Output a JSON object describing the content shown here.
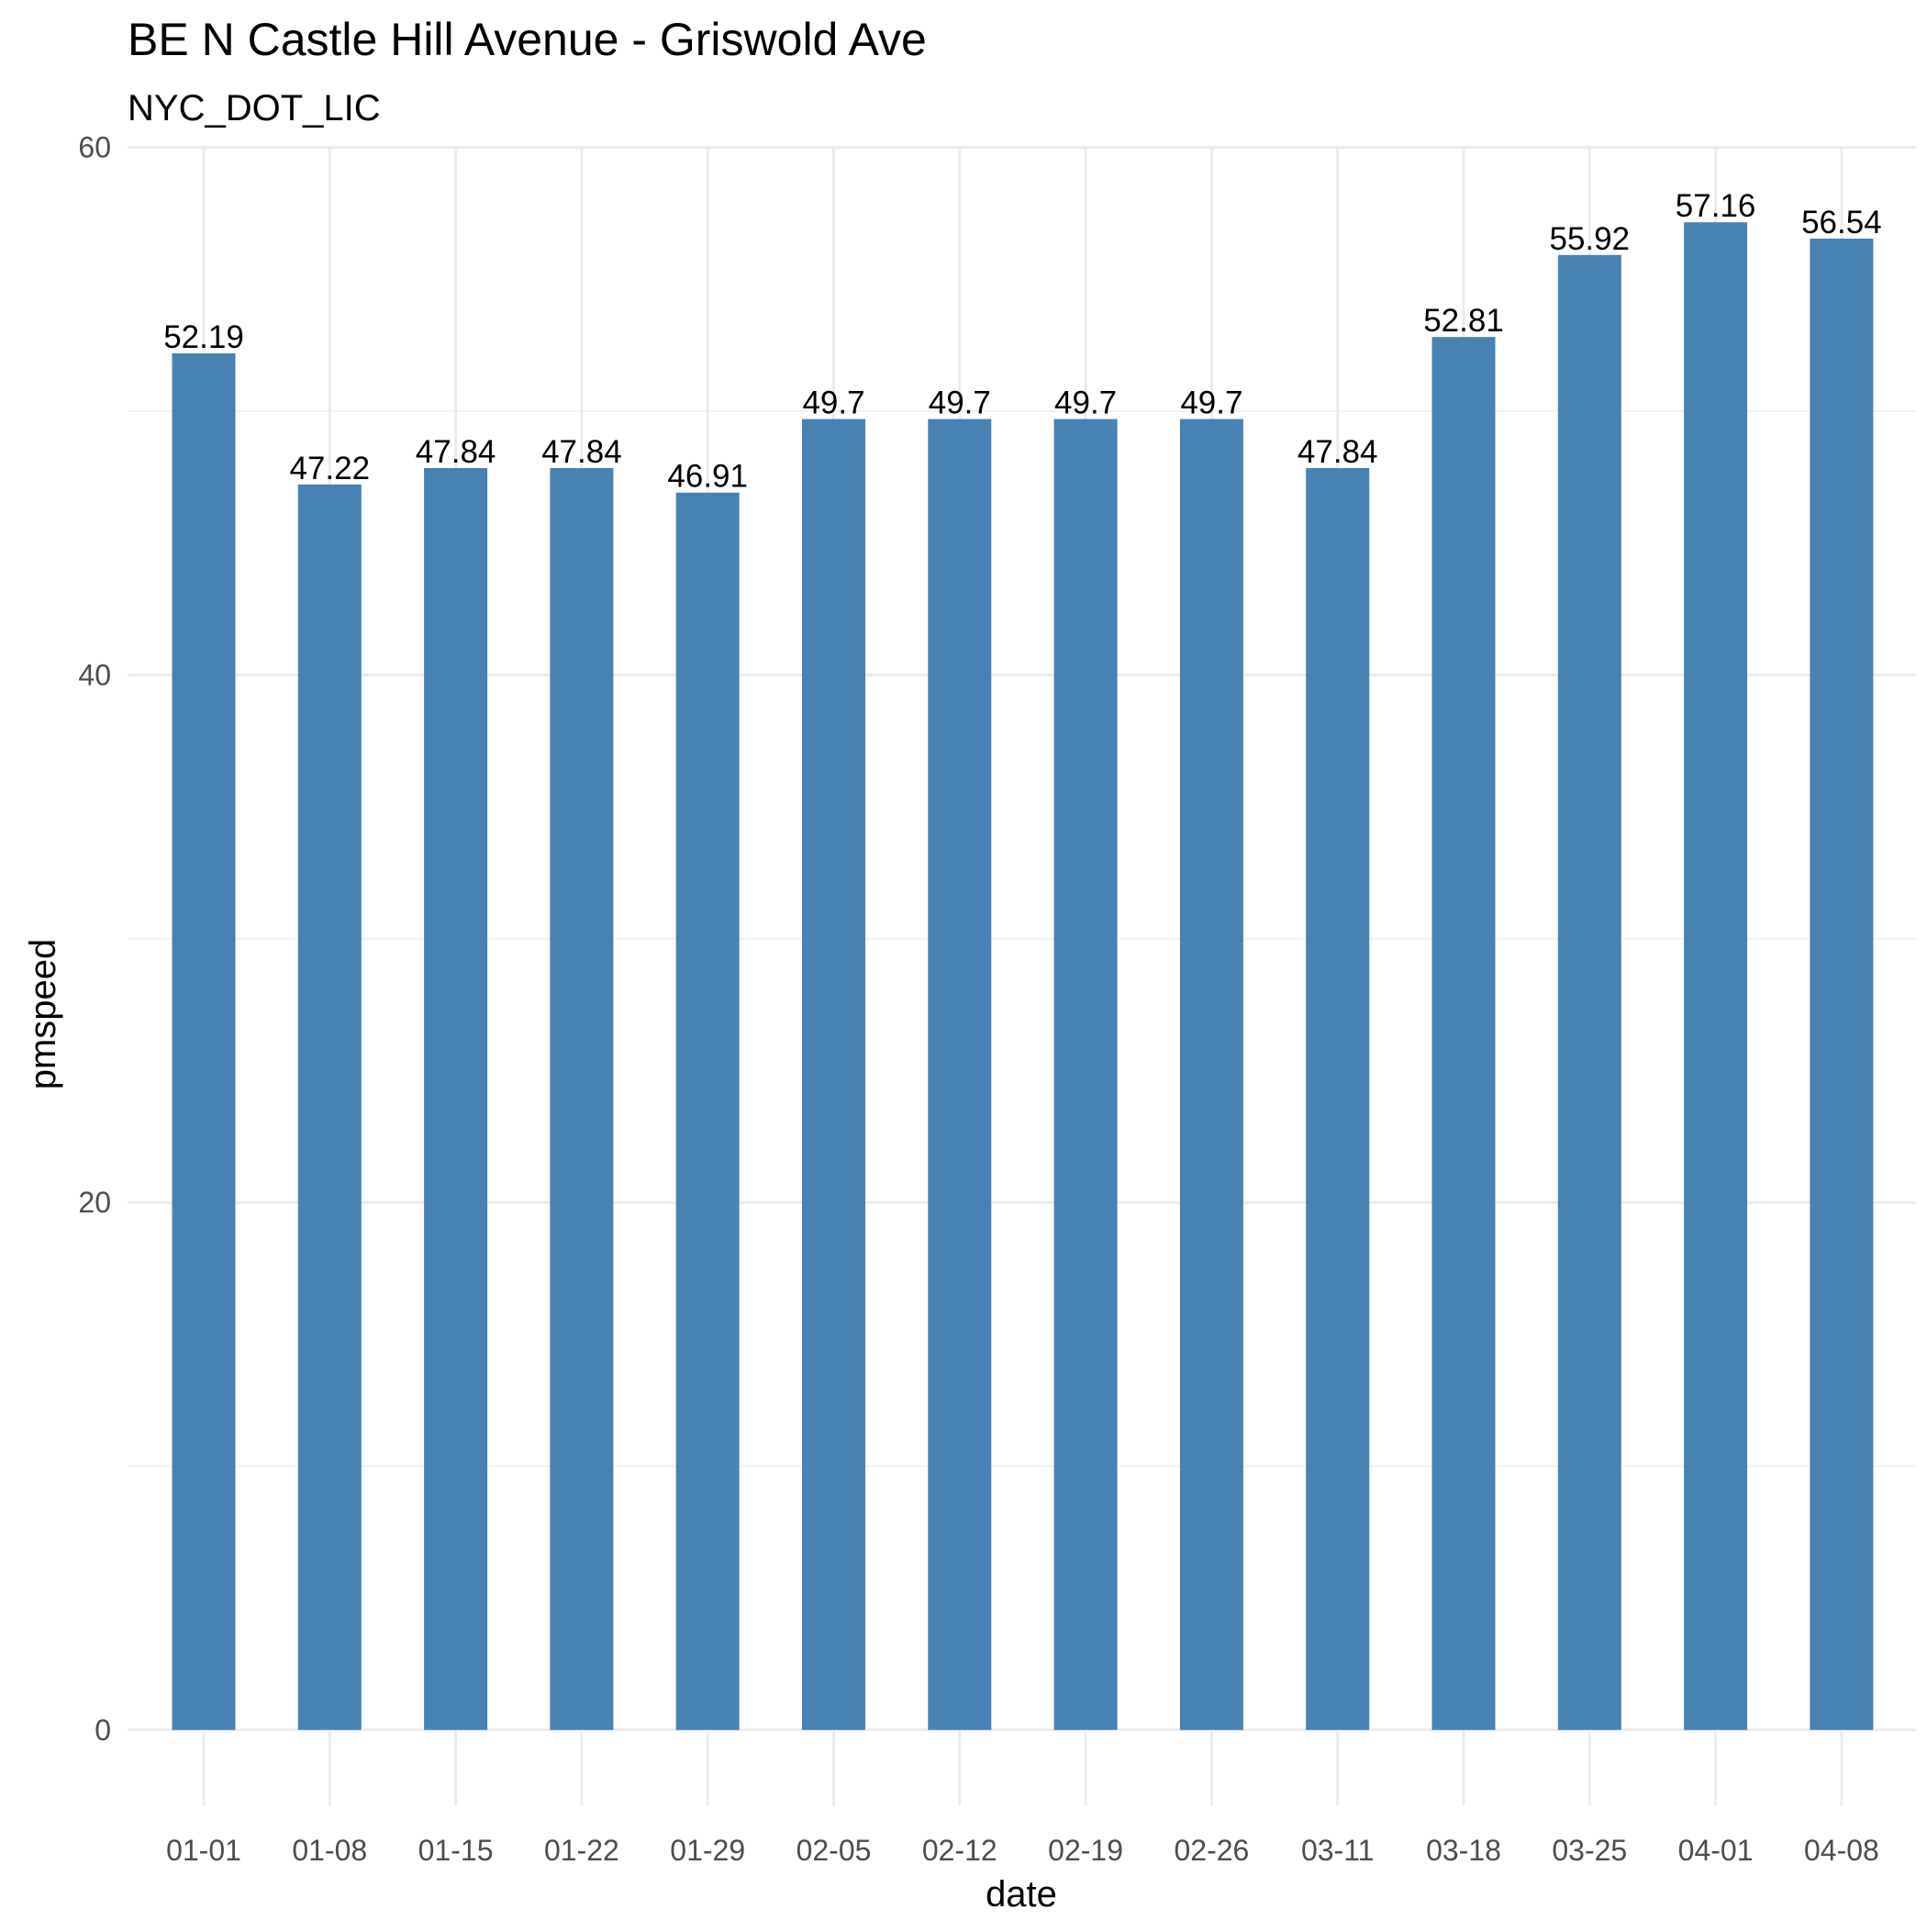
{
  "chart_data": {
    "type": "bar",
    "title": "BE N Castle Hill Avenue - Griswold Ave",
    "subtitle": "NYC_DOT_LIC",
    "xlabel": "date",
    "ylabel": "pmspeed",
    "categories": [
      "01-01",
      "01-08",
      "01-15",
      "01-22",
      "01-29",
      "02-05",
      "02-12",
      "02-19",
      "02-26",
      "03-11",
      "03-18",
      "03-25",
      "04-01",
      "04-08"
    ],
    "values": [
      52.19,
      47.22,
      47.84,
      47.84,
      46.91,
      49.7,
      49.7,
      49.7,
      49.7,
      47.84,
      52.81,
      55.92,
      57.16,
      56.54
    ],
    "data_labels": [
      "52.19",
      "47.22",
      "47.84",
      "47.84",
      "46.91",
      "49.7",
      "49.7",
      "49.7",
      "49.7",
      "47.84",
      "52.81",
      "55.92",
      "57.16",
      "56.54"
    ],
    "y_ticks": [
      0,
      20,
      40,
      60
    ],
    "ylim": [
      -2.86,
      60.02
    ],
    "grid": true,
    "legend": "none",
    "colors": {
      "bar": "#4682B4",
      "grid_major": "#EBEBEB",
      "grid_minor": "#F2F2F2",
      "background": "#FFFFFF"
    }
  }
}
